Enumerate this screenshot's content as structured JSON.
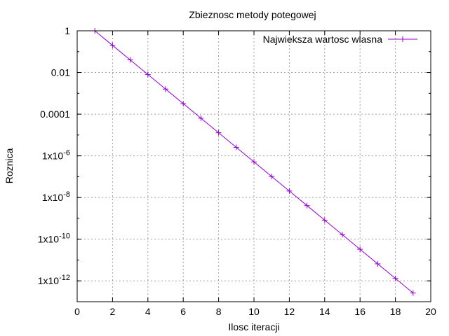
{
  "chart_data": {
    "type": "line",
    "title": "Zbieznosc metody potegowej",
    "xlabel": "Ilosc iteracji",
    "ylabel": "Roznica",
    "xlim": [
      0,
      20
    ],
    "ylim": [
      1e-13,
      1
    ],
    "y_scale": "log",
    "grid": true,
    "legend_position": "top-right",
    "x_ticks": [
      0,
      2,
      4,
      6,
      8,
      10,
      12,
      14,
      16,
      18,
      20
    ],
    "y_ticks": [
      {
        "value": 1,
        "base": "1",
        "exp": ""
      },
      {
        "value": 0.01,
        "base": "0.01",
        "exp": ""
      },
      {
        "value": 0.0001,
        "base": "0.0001",
        "exp": ""
      },
      {
        "value": 1e-06,
        "base": "1x10",
        "exp": "-6"
      },
      {
        "value": 1e-08,
        "base": "1x10",
        "exp": "-8"
      },
      {
        "value": 1e-10,
        "base": "1x10",
        "exp": "-10"
      },
      {
        "value": 1e-12,
        "base": "1x10",
        "exp": "-12"
      }
    ],
    "series": [
      {
        "name": "Najwieksza wartosc wlasna",
        "color": "#9400d3",
        "marker": "plus",
        "x": [
          1,
          2,
          3,
          4,
          5,
          6,
          7,
          8,
          9,
          10,
          11,
          12,
          13,
          14,
          15,
          16,
          17,
          18,
          19
        ],
        "y": [
          1,
          0.2,
          0.04,
          0.008,
          0.0016,
          0.00032,
          6.4e-05,
          1.28e-05,
          2.56e-06,
          5.12e-07,
          1.02e-07,
          2.05e-08,
          4.1e-09,
          8.2e-10,
          1.64e-10,
          3.28e-11,
          6.55e-12,
          1.31e-12,
          2.6e-13
        ]
      }
    ]
  }
}
